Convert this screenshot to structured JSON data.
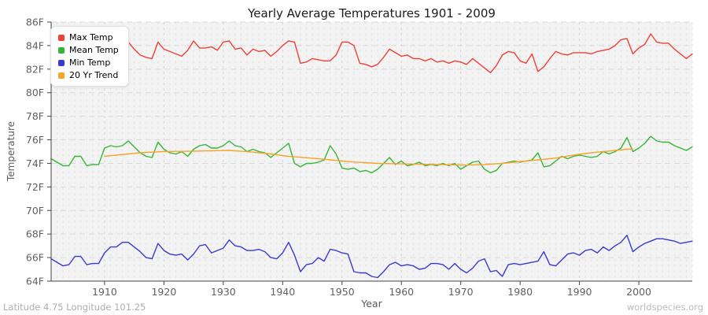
{
  "title": "Yearly Average Temperatures 1901 - 2009",
  "footer": {
    "left": "Latitude 4.75 Longitude 101.25",
    "right": "worldspecies.org"
  },
  "chart_data": {
    "type": "line",
    "title": "Yearly Average Temperatures 1901 - 2009",
    "xlabel": "Year",
    "ylabel": "Temperature",
    "x_range": [
      1901,
      2009
    ],
    "ylim": [
      64,
      86
    ],
    "y_tick_step": 2,
    "y_tick_suffix": "F",
    "x_ticks": [
      1910,
      1920,
      1930,
      1940,
      1950,
      1960,
      1970,
      1980,
      1990,
      2000
    ],
    "grid": true,
    "legend_position": "top-left",
    "series": [
      {
        "name": "Max Temp",
        "color": "#ef4037",
        "x_start": 1901,
        "values": [
          83.1,
          82.9,
          83.0,
          83.1,
          83.4,
          83.3,
          83.0,
          83.1,
          83.2,
          83.9,
          84.1,
          84.0,
          84.4,
          84.3,
          83.7,
          83.2,
          83.0,
          82.9,
          84.3,
          83.7,
          83.5,
          83.3,
          83.1,
          83.6,
          84.4,
          83.8,
          83.8,
          83.9,
          83.6,
          84.3,
          84.4,
          83.7,
          83.8,
          83.2,
          83.7,
          83.5,
          83.6,
          83.1,
          83.5,
          84.0,
          84.4,
          84.3,
          82.5,
          82.6,
          82.9,
          82.8,
          82.7,
          82.7,
          83.2,
          84.3,
          84.3,
          84.0,
          82.5,
          82.4,
          82.2,
          82.4,
          83.0,
          83.7,
          83.4,
          83.1,
          83.2,
          82.9,
          82.9,
          82.7,
          82.9,
          82.6,
          82.7,
          82.5,
          82.7,
          82.6,
          82.4,
          82.9,
          82.5,
          82.1,
          81.7,
          82.3,
          83.2,
          83.5,
          83.4,
          82.7,
          82.5,
          83.3,
          81.8,
          82.2,
          82.9,
          83.5,
          83.3,
          83.2,
          83.4,
          83.4,
          83.4,
          83.3,
          83.5,
          83.6,
          83.7,
          84.0,
          84.5,
          84.6,
          83.3,
          83.8,
          84.1,
          85.0,
          84.3,
          84.2,
          84.2,
          83.7,
          83.3,
          82.9,
          83.3
        ]
      },
      {
        "name": "Mean Temp",
        "color": "#35b535",
        "x_start": 1901,
        "values": [
          74.4,
          74.1,
          73.8,
          73.8,
          74.6,
          74.6,
          73.8,
          73.9,
          73.9,
          75.3,
          75.5,
          75.4,
          75.5,
          75.9,
          75.4,
          74.9,
          74.6,
          74.5,
          75.8,
          75.2,
          74.9,
          74.8,
          75.0,
          74.6,
          75.2,
          75.5,
          75.6,
          75.3,
          75.3,
          75.5,
          75.9,
          75.5,
          75.4,
          75.0,
          75.2,
          75.0,
          74.9,
          74.5,
          74.9,
          75.3,
          75.7,
          74.0,
          73.7,
          74.0,
          74.0,
          74.1,
          74.3,
          75.5,
          74.8,
          73.6,
          73.5,
          73.6,
          73.3,
          73.4,
          73.2,
          73.5,
          74.0,
          74.5,
          73.9,
          74.2,
          73.8,
          73.9,
          74.1,
          73.8,
          73.9,
          73.8,
          74.0,
          73.8,
          74.0,
          73.5,
          73.8,
          74.1,
          74.2,
          73.5,
          73.2,
          73.4,
          74.0,
          74.1,
          74.2,
          74.1,
          74.2,
          74.3,
          74.9,
          73.7,
          73.8,
          74.2,
          74.6,
          74.4,
          74.6,
          74.7,
          74.6,
          74.5,
          74.6,
          75.0,
          74.8,
          75.0,
          75.3,
          76.2,
          75.0,
          75.3,
          75.7,
          76.3,
          75.9,
          75.8,
          75.8,
          75.5,
          75.3,
          75.1,
          75.4
        ]
      },
      {
        "name": "Min Temp",
        "color": "#3a3ad0",
        "x_start": 1901,
        "values": [
          65.9,
          65.6,
          65.3,
          65.4,
          66.1,
          66.1,
          65.4,
          65.5,
          65.5,
          66.4,
          66.9,
          66.9,
          67.3,
          67.3,
          66.9,
          66.5,
          66.0,
          65.9,
          67.2,
          66.6,
          66.3,
          66.2,
          66.3,
          65.8,
          66.3,
          67.0,
          67.1,
          66.4,
          66.6,
          66.8,
          67.5,
          67.0,
          66.9,
          66.6,
          66.6,
          66.7,
          66.5,
          66.0,
          65.9,
          66.4,
          67.3,
          66.2,
          64.8,
          65.4,
          65.5,
          66.0,
          65.7,
          66.7,
          66.6,
          66.4,
          66.3,
          64.8,
          64.7,
          64.7,
          64.4,
          64.3,
          64.8,
          65.4,
          65.6,
          65.3,
          65.4,
          65.3,
          65.0,
          65.1,
          65.5,
          65.5,
          65.4,
          65.0,
          65.5,
          65.0,
          64.7,
          65.1,
          65.7,
          65.9,
          64.8,
          64.9,
          64.4,
          65.4,
          65.5,
          65.4,
          65.5,
          65.6,
          65.7,
          66.5,
          65.4,
          65.3,
          65.8,
          66.3,
          66.4,
          66.2,
          66.6,
          66.7,
          66.4,
          66.9,
          66.6,
          67.0,
          67.3,
          67.9,
          66.5,
          66.9,
          67.2,
          67.4,
          67.6,
          67.6,
          67.5,
          67.4,
          67.2,
          67.3,
          67.4
        ]
      },
      {
        "name": "20 Yr Trend",
        "color": "#f7a428",
        "x_start": 1910,
        "values": [
          74.6,
          74.65,
          74.7,
          74.75,
          74.8,
          74.85,
          74.9,
          74.93,
          74.95,
          74.98,
          75.0,
          75.01,
          75.02,
          75.02,
          75.03,
          75.04,
          75.05,
          75.06,
          75.07,
          75.08,
          75.09,
          75.1,
          75.07,
          75.03,
          75.0,
          74.95,
          74.9,
          74.85,
          74.79,
          74.73,
          74.66,
          74.6,
          74.56,
          74.52,
          74.48,
          74.44,
          74.4,
          74.35,
          74.3,
          74.25,
          74.2,
          74.15,
          74.12,
          74.09,
          74.06,
          74.03,
          74.0,
          73.99,
          73.98,
          73.97,
          73.96,
          73.95,
          73.94,
          73.93,
          73.92,
          73.91,
          73.9,
          73.89,
          73.88,
          73.87,
          73.86,
          73.85,
          73.87,
          73.88,
          73.9,
          73.93,
          73.97,
          74.0,
          74.05,
          74.1,
          74.15,
          74.2,
          74.25,
          74.3,
          74.35,
          74.4,
          74.45,
          74.53,
          74.62,
          74.7,
          74.77,
          74.83,
          74.9,
          74.95,
          75.0,
          75.05,
          75.1,
          75.15,
          75.2,
          75.2
        ]
      }
    ]
  }
}
